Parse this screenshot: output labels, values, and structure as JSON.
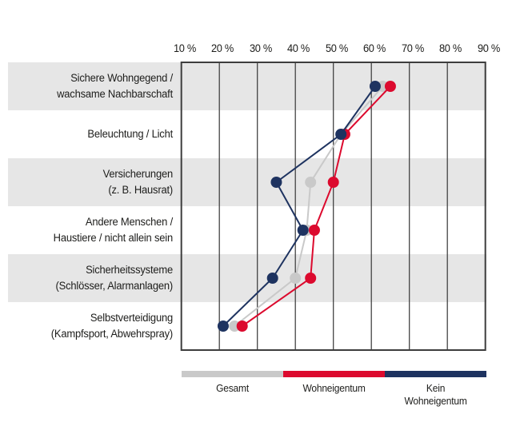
{
  "chart_data": {
    "type": "line",
    "variant": "dot-line-by-category",
    "title": "",
    "categories": [
      "Sichere Wohngegend /\nwachsame Nachbarschaft",
      "Beleuchtung / Licht",
      "Versicherungen\n(z. B. Hausrat)",
      "Andere Menschen /\nHaustiere / nicht allein sein",
      "Sicherheitssysteme\n(Schlösser, Alarmanlagen)",
      "Selbstverteidigung\n(Kampfsport, Abwehrspray)"
    ],
    "x_ticks": [
      "10 %",
      "20 %",
      "30 %",
      "40 %",
      "50 %",
      "60 %",
      "70 %",
      "80 %",
      "90 %"
    ],
    "x_range": [
      10,
      90
    ],
    "grid": "vertical-only",
    "legend_position": "bottom",
    "series": [
      {
        "name": "Gesamt",
        "color": "#c9c9c9",
        "values": [
          63,
          52,
          44,
          43,
          40,
          24
        ]
      },
      {
        "name": "Wohneigentum",
        "color": "#dc0a2e",
        "values": [
          65,
          53,
          50,
          45,
          44,
          26
        ]
      },
      {
        "name": "Kein Wohneigentum",
        "color": "#1e3360",
        "values": [
          61,
          52,
          35,
          42,
          34,
          21
        ]
      }
    ],
    "legend": [
      {
        "label": "Gesamt",
        "color": "#c9c9c9"
      },
      {
        "label": "Wohneigentum",
        "color": "#dc0a2e"
      },
      {
        "label": "Kein\nWohneigentum",
        "color": "#1e3360"
      }
    ],
    "colors": {
      "row_band": "#e6e6e6",
      "gridline": "#3d3d3d",
      "border": "#3d3d3d",
      "text": "#1d1d1b",
      "background": "#ffffff"
    }
  }
}
